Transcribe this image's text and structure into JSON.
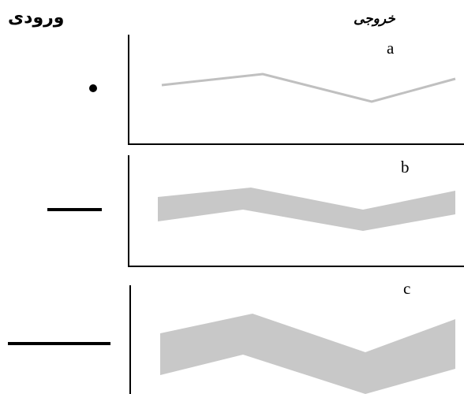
{
  "headers": {
    "input": "ورودی",
    "output": "خروجی"
  },
  "panels": [
    {
      "label": "a",
      "input": "point",
      "output": "thin line"
    },
    {
      "label": "b",
      "input": "short line",
      "output": "band"
    },
    {
      "label": "c",
      "input": "long line",
      "output": "wide band"
    }
  ],
  "colors": {
    "ink": "#000000",
    "band": "#c8c8c8",
    "thin_line": "#c0c0c0",
    "background": "#ffffff"
  }
}
